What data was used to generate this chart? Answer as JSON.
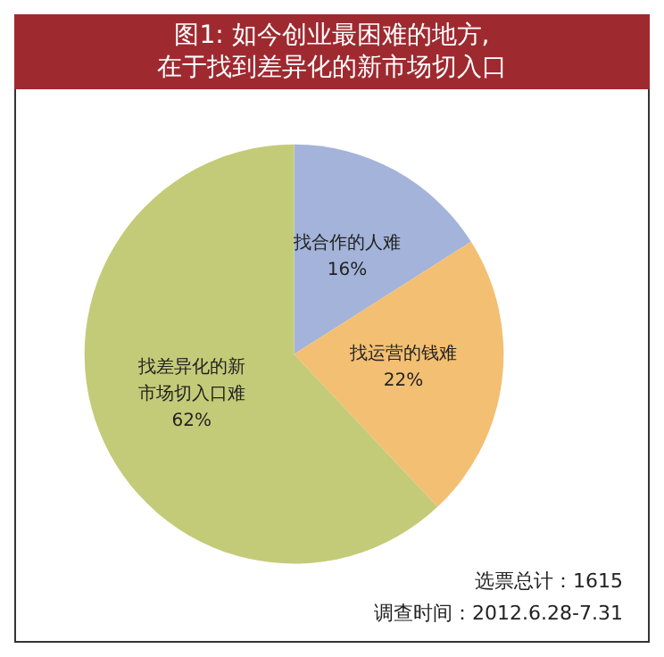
{
  "chart_data": {
    "type": "pie",
    "title": "图1: 如今创业最困难的地方,\n在于找到差异化的新市场切入口",
    "categories": [
      "找合作的人难",
      "找运营的钱难",
      "找差异化的新市场切入口难"
    ],
    "values": [
      16,
      22,
      62
    ],
    "value_labels": [
      "16%",
      "22%",
      "62%"
    ],
    "colors": [
      "#a3b3d9",
      "#f3bf72",
      "#c4cb78"
    ],
    "legend": false,
    "annotations": [
      "选票总计：1615",
      "调查时间：2012.6.28-7.31"
    ]
  }
}
